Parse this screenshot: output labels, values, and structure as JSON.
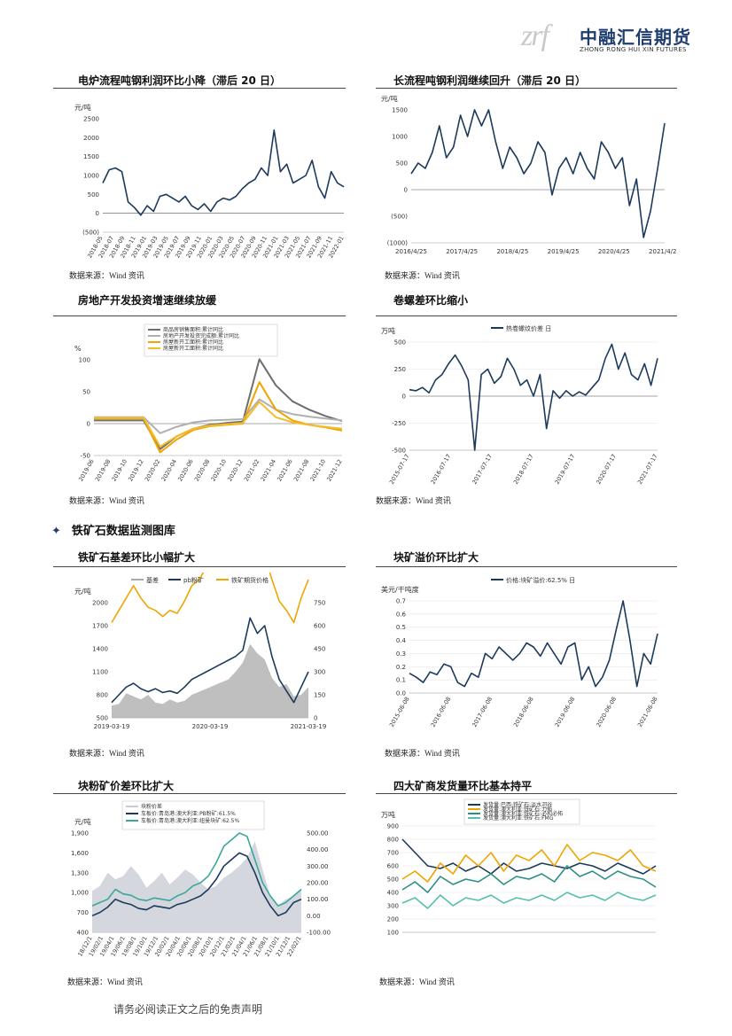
{
  "header": {
    "logo_mark": "zrf",
    "logo_cn": "中融汇信期货",
    "logo_en": "ZHONG RONG HUI XIN FUTURES"
  },
  "section": {
    "title": "铁矿石数据监测图库"
  },
  "footer": {
    "disclaimer": "请务必阅读正文之后的免责声明"
  },
  "colors": {
    "navy": "#1d3a5c",
    "orange": "#f0a500",
    "gray": "#a9a9a9",
    "teal": "#3aa89a",
    "area": "#c5cad3"
  },
  "charts": [
    {
      "title": "电炉流程吨钢利润环比小降（滞后 20 日）",
      "source": "数据来源：Wind 资讯",
      "chart_data": {
        "type": "line",
        "unit": "元/吨",
        "ylim": [
          -500,
          2500
        ],
        "yticks": [
          "2500",
          "2000",
          "1500",
          "1000",
          "500",
          "0",
          "(500)"
        ],
        "xticks": [
          "2018-05",
          "2018-07",
          "2018-09",
          "2018-11",
          "2019-01",
          "2019-03",
          "2019-05",
          "2019-07",
          "2019-09",
          "2019-11",
          "2020-01",
          "2020-03",
          "2020-05",
          "2020-07",
          "2020-09",
          "2020-11",
          "2021-01",
          "2021-03",
          "2021-05",
          "2021-07",
          "2021-09",
          "2021-11",
          "2022-01"
        ],
        "series": [
          {
            "values": [
              800,
              1150,
              1200,
              1100,
              300,
              150,
              -50,
              200,
              50,
              450,
              500,
              400,
              300,
              450,
              200,
              100,
              250,
              50,
              300,
              400,
              350,
              450,
              650,
              800,
              900,
              1200,
              1000,
              2200,
              1100,
              1300,
              800,
              900,
              1000,
              1400,
              700,
              400,
              1100,
              800,
              700
            ]
          }
        ]
      }
    },
    {
      "title": "长流程吨钢利润继续回升（滞后 20 日）",
      "source": "数据来源：Wind 资讯",
      "chart_data": {
        "type": "line",
        "unit": "元/吨",
        "ylim": [
          -1000,
          1500
        ],
        "yticks": [
          "1500",
          "1000",
          "500",
          "0",
          "(500)",
          "(1000)"
        ],
        "xticks": [
          "2016/4/25",
          "2017/4/25",
          "2018/4/25",
          "2019/4/25",
          "2020/4/25",
          "2021/4/25"
        ],
        "series": [
          {
            "values": [
              300,
              500,
              400,
              700,
              1200,
              600,
              800,
              1400,
              1000,
              1500,
              1200,
              1500,
              900,
              400,
              800,
              600,
              300,
              500,
              900,
              700,
              -100,
              400,
              600,
              300,
              700,
              400,
              200,
              900,
              700,
              400,
              600,
              -300,
              200,
              -900,
              -400,
              400,
              1250
            ]
          }
        ]
      }
    },
    {
      "title": "房地产开发投资增速继续放缓",
      "source": "数据来源：Wind 资讯",
      "chart_data": {
        "type": "line",
        "unit": "%",
        "ylim": [
          -50,
          100
        ],
        "yticks": [
          "100",
          "50",
          "0",
          "-50"
        ],
        "xticks": [
          "2019-06",
          "2019-08",
          "2019-10",
          "2019-12",
          "2020-02",
          "2020-04",
          "2020-06",
          "2020-08",
          "2020-10",
          "2020-12",
          "2021-02",
          "2021-04",
          "2021-06",
          "2021-08",
          "2021-10",
          "2021-12"
        ],
        "legend": [
          "商品房销售面积:累计同比",
          "房地产开发投资完成额:累计同比",
          "房屋新开工面积:累计同比",
          "房屋新开工面积:累计同比"
        ],
        "series": [
          {
            "name": "商品房销售面积:累计同比",
            "values": [
              5,
              5,
              5,
              5,
              -40,
              -20,
              -8,
              -2,
              1,
              3,
              101,
              60,
              35,
              22,
              12,
              4
            ]
          },
          {
            "name": "房地产开发投资完成额:累计同比",
            "values": [
              10,
              10,
              10,
              10,
              -15,
              -5,
              2,
              5,
              6,
              7,
              38,
              22,
              15,
              11,
              8,
              5
            ]
          },
          {
            "name": "房屋新开工面积:累计同比",
            "values": [
              8,
              8,
              8,
              8,
              -45,
              -25,
              -10,
              -4,
              -2,
              0,
              65,
              22,
              5,
              -2,
              -6,
              -11
            ]
          },
          {
            "name": "房屋新开工面积:累计同比",
            "values": [
              9,
              9,
              9,
              9,
              -36,
              -20,
              -8,
              -3,
              -1,
              1,
              34,
              10,
              2,
              -2,
              -5,
              -8
            ]
          }
        ]
      }
    },
    {
      "title": "卷螺差环比缩小",
      "source": "数据来源：Wind 资讯",
      "chart_data": {
        "type": "line",
        "unit": "万吨",
        "ylim": [
          -500,
          500
        ],
        "yticks": [
          "500",
          "250",
          "0",
          "-250",
          "-500"
        ],
        "xticks": [
          "2015-07-17",
          "2016-07-17",
          "2017-07-17",
          "2018-07-17",
          "2019-07-17",
          "2020-07-17",
          "2021-07-17"
        ],
        "legend": [
          "热卷螺纹价差 日"
        ],
        "series": [
          {
            "name": "热卷螺纹价差 日",
            "values": [
              60,
              50,
              80,
              30,
              150,
              200,
              300,
              380,
              280,
              150,
              -500,
              200,
              250,
              120,
              180,
              350,
              250,
              100,
              150,
              0,
              200,
              -300,
              50,
              -20,
              50,
              0,
              40,
              10,
              80,
              150,
              350,
              480,
              250,
              400,
              200,
              150,
              300,
              100,
              350
            ]
          }
        ]
      }
    },
    {
      "title": "铁矿石基差环比小幅扩大",
      "source": "数据来源：Wind 资讯",
      "chart_data": {
        "type": "line",
        "unit": "元/吨",
        "ylim": [
          500,
          2000
        ],
        "ylim_right": [
          0,
          750
        ],
        "yticks": [
          "2000",
          "1700",
          "1400",
          "1100",
          "800",
          "500"
        ],
        "yticks_right": [
          "750",
          "600",
          "450",
          "300",
          "150",
          "0"
        ],
        "xticks": [
          "2019-03-19",
          "2020-03-19",
          "2021-03-19"
        ],
        "legend": [
          "基差",
          "pb粉矿",
          "铁矿期货价格"
        ],
        "series": [
          {
            "name": "基差",
            "values": [
              80,
              90,
              160,
              140,
              120,
              150,
              100,
              90,
              120,
              100,
              110,
              150,
              170,
              190,
              210,
              230,
              250,
              300,
              360,
              480,
              420,
              380,
              260,
              200,
              220,
              140,
              150,
              200
            ]
          },
          {
            "name": "pb粉矿",
            "values": [
              700,
              800,
              900,
              950,
              880,
              840,
              880,
              830,
              850,
              820,
              900,
              1000,
              1050,
              1100,
              1150,
              1200,
              1250,
              1300,
              1380,
              1800,
              1600,
              1700,
              1300,
              1000,
              850,
              700,
              900,
              1100
            ]
          },
          {
            "name": "铁矿期货价格",
            "values": [
              620,
              700,
              780,
              860,
              780,
              720,
              700,
              660,
              700,
              680,
              760,
              860,
              900,
              980,
              1000,
              1050,
              1100,
              1150,
              1250,
              1150,
              1200,
              1050,
              900,
              760,
              700,
              620,
              780,
              900
            ]
          }
        ]
      }
    },
    {
      "title": "块矿溢价环比扩大",
      "source": "数据来源：Wind 资讯",
      "chart_data": {
        "type": "line",
        "unit": "美元/干吨度",
        "ylim": [
          0,
          0.7
        ],
        "yticks": [
          "0.7",
          "0.6",
          "0.5",
          "0.4",
          "0.3",
          "0.2",
          "0.1",
          "0.0"
        ],
        "xticks": [
          "2015-06-08",
          "2016-06-08",
          "2017-06-08",
          "2018-06-08",
          "2019-06-08",
          "2020-06-08",
          "2021-06-08"
        ],
        "legend": [
          "价格:块矿溢价:62.5% 日"
        ],
        "series": [
          {
            "name": "价格:块矿溢价:62.5% 日",
            "values": [
              0.15,
              0.12,
              0.08,
              0.16,
              0.14,
              0.22,
              0.2,
              0.08,
              0.05,
              0.15,
              0.12,
              0.3,
              0.26,
              0.35,
              0.3,
              0.25,
              0.3,
              0.38,
              0.35,
              0.28,
              0.38,
              0.3,
              0.22,
              0.35,
              0.38,
              0.1,
              0.2,
              0.05,
              0.12,
              0.25,
              0.48,
              0.7,
              0.4,
              0.05,
              0.3,
              0.22,
              0.45
            ]
          }
        ]
      }
    },
    {
      "title": "块粉矿价差环比扩大",
      "source": "数据来源：Wind 资讯",
      "chart_data": {
        "type": "area",
        "unit": "元/吨",
        "ylim": [
          400,
          1900
        ],
        "ylim_right": [
          -100,
          500
        ],
        "yticks": [
          "1,900",
          "1,600",
          "1,300",
          "1,000",
          "700",
          "400"
        ],
        "yticks_right": [
          "500.00",
          "400.00",
          "300.00",
          "200.00",
          "100.00",
          "0.00",
          "-100.00"
        ],
        "xticks": [
          "18/12/1",
          "19/02/1",
          "19/04/1",
          "19/06/1",
          "19/08/1",
          "19/10/1",
          "19/12/1",
          "20/02/1",
          "20/04/1",
          "20/06/1",
          "20/08/1",
          "20/10/1",
          "20/12/1",
          "21/02/1",
          "21/04/1",
          "21/06/1",
          "21/08/1",
          "21/10/1",
          "21/12/1",
          "22/02/1"
        ],
        "legend": [
          "块粉价差",
          "车板价:青岛港:澳大利亚:PB粉矿:61.5%",
          "车板价:青岛港:澳大利亚:纽曼块矿:62.5%"
        ],
        "series": [
          {
            "name": "块粉价差",
            "values": [
              150,
              180,
              260,
              220,
              240,
              300,
              250,
              170,
              210,
              260,
              190,
              230,
              280,
              250,
              200,
              160,
              180,
              230,
              260,
              300,
              350,
              450,
              280,
              120,
              60,
              100,
              120,
              160
            ]
          },
          {
            "name": "车板价:青岛港:澳大利亚:PB粉矿:61.5%",
            "values": [
              650,
              700,
              780,
              900,
              850,
              820,
              760,
              740,
              800,
              780,
              760,
              820,
              850,
              900,
              950,
              1050,
              1200,
              1400,
              1500,
              1600,
              1550,
              1300,
              1000,
              800,
              650,
              700,
              850,
              900
            ]
          },
          {
            "name": "车板价:青岛港:澳大利亚:纽曼块矿:62.5%",
            "values": [
              800,
              850,
              900,
              1050,
              980,
              960,
              900,
              880,
              920,
              900,
              880,
              950,
              1000,
              1100,
              1150,
              1250,
              1450,
              1700,
              1800,
              1900,
              1850,
              1500,
              1150,
              950,
              800,
              850,
              950,
              1050
            ]
          }
        ]
      }
    },
    {
      "title": "四大矿商发货量环比基本持平",
      "source": "数据来源：Wind 资讯",
      "chart_data": {
        "type": "line",
        "unit": "万吨",
        "ylim": [
          100,
          900
        ],
        "yticks": [
          "900",
          "800",
          "700",
          "600",
          "500",
          "400",
          "300",
          "200",
          "100"
        ],
        "legend": [
          "发货量:巴西:铁矿石:淡水河谷",
          "发货量:澳大利亚:铁矿石:力拓",
          "发货量:澳大利亚:铁矿石:必和必拓",
          "发货量:澳大利亚:铁矿石:FMG"
        ],
        "series": [
          {
            "name": "发货量:巴西:铁矿石:淡水河谷",
            "values": [
              800,
              700,
              600,
              580,
              620,
              560,
              600,
              540,
              620,
              560,
              580,
              620,
              600,
              580,
              620,
              600,
              560,
              620,
              580,
              540,
              600
            ]
          },
          {
            "name": "发货量:澳大利亚:铁矿石:力拓",
            "values": [
              500,
              560,
              480,
              620,
              540,
              680,
              600,
              700,
              560,
              680,
              640,
              720,
              600,
              760,
              640,
              700,
              680,
              640,
              720,
              600,
              560
            ]
          },
          {
            "name": "发货量:澳大利亚:铁矿石:必和必拓",
            "values": [
              420,
              480,
              400,
              520,
              460,
              500,
              480,
              540,
              460,
              520,
              500,
              540,
              480,
              600,
              520,
              560,
              500,
              560,
              520,
              500,
              440
            ]
          },
          {
            "name": "发货量:澳大利亚:铁矿石:FMG",
            "values": [
              320,
              360,
              280,
              380,
              300,
              360,
              340,
              380,
              320,
              360,
              340,
              380,
              340,
              400,
              360,
              380,
              340,
              400,
              360,
              340,
              380
            ]
          }
        ]
      }
    }
  ]
}
